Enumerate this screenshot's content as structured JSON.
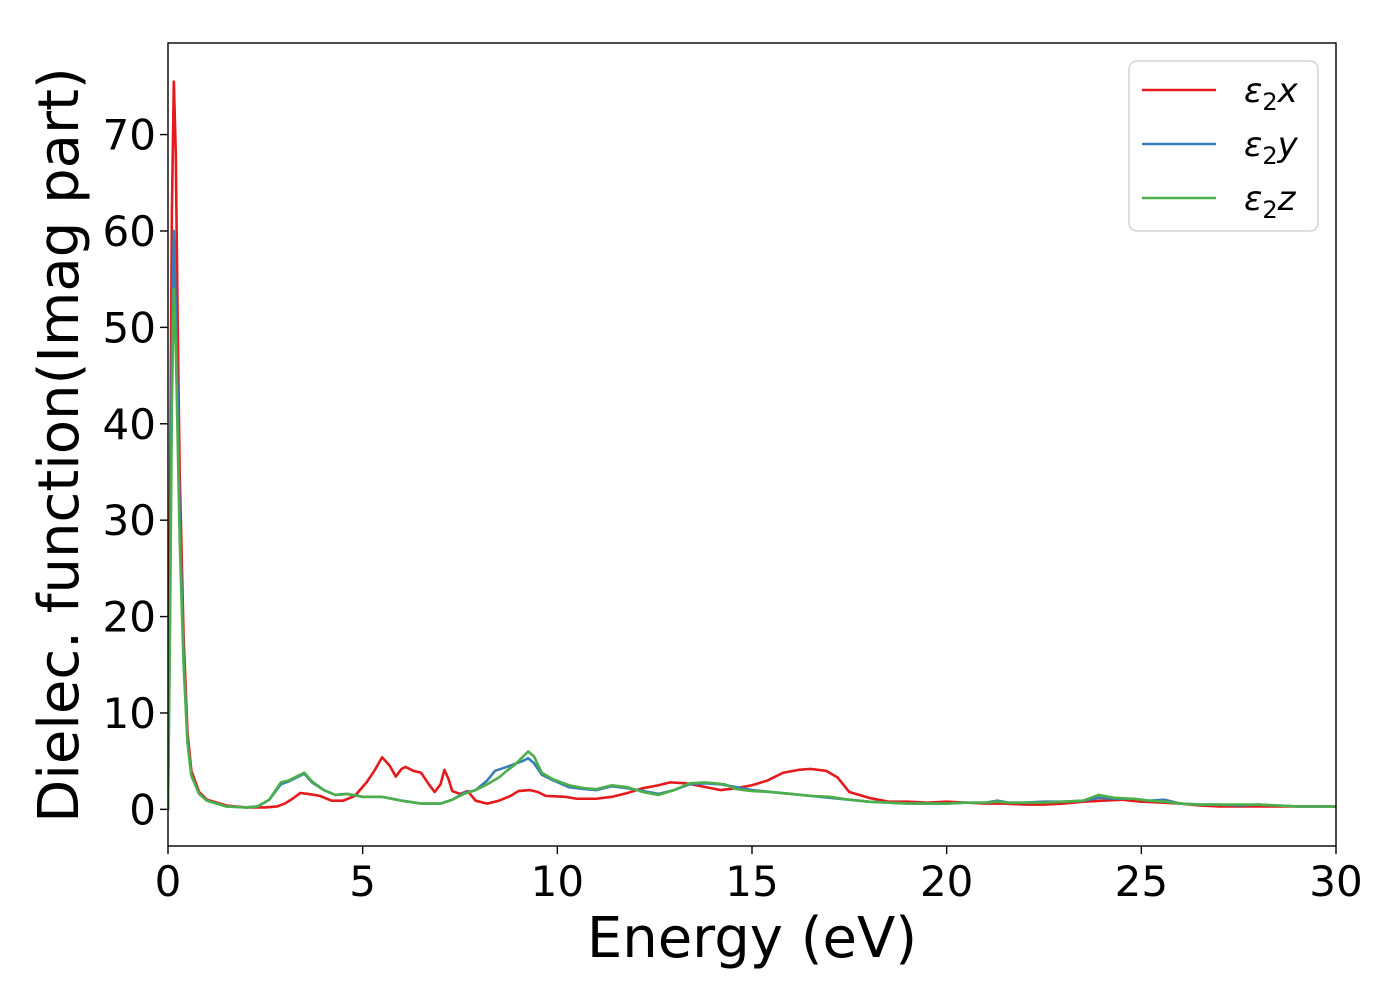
{
  "chart_data": {
    "type": "line",
    "xlabel": "Energy (eV)",
    "ylabel": "Dielec. function(Imag part)",
    "xlim": [
      0,
      30
    ],
    "ylim": [
      -3.8,
      79.5
    ],
    "xticks": [
      0,
      5,
      10,
      15,
      20,
      25,
      30
    ],
    "yticks": [
      0,
      10,
      20,
      30,
      40,
      50,
      60,
      70
    ],
    "legend_placement": "top-right",
    "grid": false,
    "series": [
      {
        "name": "ε2x",
        "symbol": "ε",
        "sub": "2",
        "suffix": "x",
        "color": "#e41a1c",
        "points": [
          [
            0,
            0
          ],
          [
            0.05,
            30
          ],
          [
            0.1,
            62
          ],
          [
            0.15,
            75.5
          ],
          [
            0.2,
            68
          ],
          [
            0.25,
            50
          ],
          [
            0.3,
            35
          ],
          [
            0.4,
            18
          ],
          [
            0.5,
            8
          ],
          [
            0.6,
            4
          ],
          [
            0.8,
            1.8
          ],
          [
            1,
            1
          ],
          [
            1.5,
            0.4
          ],
          [
            2,
            0.2
          ],
          [
            2.5,
            0.2
          ],
          [
            2.8,
            0.3
          ],
          [
            3.0,
            0.6
          ],
          [
            3.2,
            1.1
          ],
          [
            3.4,
            1.7
          ],
          [
            3.6,
            1.6
          ],
          [
            3.9,
            1.4
          ],
          [
            4.2,
            0.9
          ],
          [
            4.5,
            0.9
          ],
          [
            4.8,
            1.4
          ],
          [
            5.1,
            2.8
          ],
          [
            5.3,
            4.0
          ],
          [
            5.5,
            5.4
          ],
          [
            5.7,
            4.5
          ],
          [
            5.85,
            3.4
          ],
          [
            6.0,
            4.2
          ],
          [
            6.1,
            4.4
          ],
          [
            6.3,
            4.0
          ],
          [
            6.5,
            3.8
          ],
          [
            6.7,
            2.6
          ],
          [
            6.85,
            1.8
          ],
          [
            7.0,
            2.6
          ],
          [
            7.1,
            4.1
          ],
          [
            7.2,
            3.2
          ],
          [
            7.3,
            1.9
          ],
          [
            7.5,
            1.6
          ],
          [
            7.7,
            1.9
          ],
          [
            7.9,
            0.9
          ],
          [
            8.2,
            0.6
          ],
          [
            8.5,
            0.9
          ],
          [
            8.8,
            1.4
          ],
          [
            9.0,
            1.9
          ],
          [
            9.3,
            2.0
          ],
          [
            9.5,
            1.8
          ],
          [
            9.7,
            1.4
          ],
          [
            10.2,
            1.3
          ],
          [
            10.5,
            1.1
          ],
          [
            11.0,
            1.1
          ],
          [
            11.4,
            1.3
          ],
          [
            11.8,
            1.7
          ],
          [
            12.2,
            2.2
          ],
          [
            12.6,
            2.5
          ],
          [
            12.9,
            2.8
          ],
          [
            13.3,
            2.7
          ],
          [
            13.7,
            2.4
          ],
          [
            14.2,
            2.0
          ],
          [
            14.6,
            2.2
          ],
          [
            15.0,
            2.5
          ],
          [
            15.4,
            3.0
          ],
          [
            15.8,
            3.8
          ],
          [
            16.2,
            4.1
          ],
          [
            16.5,
            4.2
          ],
          [
            16.9,
            4.0
          ],
          [
            17.2,
            3.3
          ],
          [
            17.5,
            1.8
          ],
          [
            18.0,
            1.2
          ],
          [
            18.5,
            0.8
          ],
          [
            19.0,
            0.8
          ],
          [
            19.5,
            0.7
          ],
          [
            20.0,
            0.8
          ],
          [
            20.5,
            0.7
          ],
          [
            21.0,
            0.6
          ],
          [
            21.5,
            0.6
          ],
          [
            22.0,
            0.5
          ],
          [
            22.5,
            0.5
          ],
          [
            23.0,
            0.6
          ],
          [
            23.5,
            0.8
          ],
          [
            24.0,
            0.9
          ],
          [
            24.5,
            1.0
          ],
          [
            25.0,
            0.8
          ],
          [
            25.5,
            0.7
          ],
          [
            26.0,
            0.6
          ],
          [
            26.5,
            0.4
          ],
          [
            27.0,
            0.3
          ],
          [
            27.5,
            0.3
          ],
          [
            28.0,
            0.3
          ],
          [
            28.5,
            0.3
          ],
          [
            29.0,
            0.3
          ],
          [
            30.0,
            0.3
          ]
        ]
      },
      {
        "name": "ε2y",
        "symbol": "ε",
        "sub": "2",
        "suffix": "y",
        "color": "#377eb8",
        "points": [
          [
            0,
            0
          ],
          [
            0.05,
            20
          ],
          [
            0.1,
            48
          ],
          [
            0.15,
            60
          ],
          [
            0.2,
            52
          ],
          [
            0.25,
            42
          ],
          [
            0.3,
            30
          ],
          [
            0.4,
            16
          ],
          [
            0.5,
            7
          ],
          [
            0.6,
            3.5
          ],
          [
            0.8,
            1.6
          ],
          [
            1,
            0.9
          ],
          [
            1.5,
            0.3
          ],
          [
            2,
            0.2
          ],
          [
            2.3,
            0.3
          ],
          [
            2.6,
            1.0
          ],
          [
            2.9,
            2.6
          ],
          [
            3.1,
            2.9
          ],
          [
            3.3,
            3.3
          ],
          [
            3.5,
            3.7
          ],
          [
            3.7,
            2.8
          ],
          [
            4.0,
            2.0
          ],
          [
            4.3,
            1.5
          ],
          [
            4.6,
            1.6
          ],
          [
            5.0,
            1.3
          ],
          [
            5.5,
            1.3
          ],
          [
            6.0,
            0.9
          ],
          [
            6.5,
            0.6
          ],
          [
            7.0,
            0.6
          ],
          [
            7.3,
            1.0
          ],
          [
            7.6,
            1.7
          ],
          [
            7.9,
            2.0
          ],
          [
            8.2,
            3.0
          ],
          [
            8.4,
            4.0
          ],
          [
            8.7,
            4.4
          ],
          [
            8.9,
            4.7
          ],
          [
            9.1,
            5.0
          ],
          [
            9.25,
            5.3
          ],
          [
            9.4,
            4.8
          ],
          [
            9.6,
            3.6
          ],
          [
            9.9,
            3.0
          ],
          [
            10.3,
            2.3
          ],
          [
            10.7,
            2.1
          ],
          [
            11.0,
            2.0
          ],
          [
            11.4,
            2.4
          ],
          [
            11.8,
            2.2
          ],
          [
            12.2,
            1.9
          ],
          [
            12.6,
            1.6
          ],
          [
            13.0,
            2.0
          ],
          [
            13.4,
            2.6
          ],
          [
            13.8,
            2.7
          ],
          [
            14.2,
            2.6
          ],
          [
            14.6,
            2.3
          ],
          [
            15.0,
            2.0
          ],
          [
            15.5,
            1.8
          ],
          [
            16.0,
            1.6
          ],
          [
            16.5,
            1.4
          ],
          [
            17.0,
            1.2
          ],
          [
            17.5,
            1.0
          ],
          [
            18.0,
            0.8
          ],
          [
            18.5,
            0.7
          ],
          [
            19.0,
            0.6
          ],
          [
            19.5,
            0.6
          ],
          [
            20.0,
            0.6
          ],
          [
            20.5,
            0.7
          ],
          [
            21.0,
            0.7
          ],
          [
            21.3,
            0.9
          ],
          [
            21.6,
            0.7
          ],
          [
            22.0,
            0.7
          ],
          [
            22.5,
            0.8
          ],
          [
            23.0,
            0.8
          ],
          [
            23.5,
            0.9
          ],
          [
            23.9,
            1.2
          ],
          [
            24.3,
            1.1
          ],
          [
            24.8,
            1.1
          ],
          [
            25.2,
            0.9
          ],
          [
            25.6,
            1.0
          ],
          [
            26.0,
            0.6
          ],
          [
            26.5,
            0.5
          ],
          [
            27.0,
            0.5
          ],
          [
            27.5,
            0.4
          ],
          [
            28.0,
            0.5
          ],
          [
            28.5,
            0.4
          ],
          [
            29.0,
            0.3
          ],
          [
            30.0,
            0.3
          ]
        ]
      },
      {
        "name": "ε2z",
        "symbol": "ε",
        "sub": "2",
        "suffix": "z",
        "color": "#4daf4a",
        "points": [
          [
            0,
            0
          ],
          [
            0.05,
            18
          ],
          [
            0.1,
            42
          ],
          [
            0.15,
            54
          ],
          [
            0.2,
            48
          ],
          [
            0.25,
            38
          ],
          [
            0.3,
            28
          ],
          [
            0.4,
            15
          ],
          [
            0.5,
            7
          ],
          [
            0.6,
            3.5
          ],
          [
            0.8,
            1.6
          ],
          [
            1,
            0.9
          ],
          [
            1.5,
            0.3
          ],
          [
            2,
            0.2
          ],
          [
            2.3,
            0.3
          ],
          [
            2.6,
            1.0
          ],
          [
            2.9,
            2.8
          ],
          [
            3.1,
            3.0
          ],
          [
            3.3,
            3.4
          ],
          [
            3.5,
            3.8
          ],
          [
            3.7,
            2.9
          ],
          [
            4.0,
            2.0
          ],
          [
            4.3,
            1.5
          ],
          [
            4.6,
            1.6
          ],
          [
            5.0,
            1.3
          ],
          [
            5.5,
            1.3
          ],
          [
            6.0,
            0.9
          ],
          [
            6.5,
            0.6
          ],
          [
            7.0,
            0.6
          ],
          [
            7.3,
            1.0
          ],
          [
            7.6,
            1.6
          ],
          [
            7.9,
            2.0
          ],
          [
            8.2,
            2.6
          ],
          [
            8.5,
            3.3
          ],
          [
            8.7,
            4.0
          ],
          [
            8.9,
            4.6
          ],
          [
            9.1,
            5.4
          ],
          [
            9.25,
            6.0
          ],
          [
            9.4,
            5.5
          ],
          [
            9.6,
            3.8
          ],
          [
            9.9,
            3.1
          ],
          [
            10.3,
            2.5
          ],
          [
            10.7,
            2.2
          ],
          [
            11.0,
            2.1
          ],
          [
            11.4,
            2.5
          ],
          [
            11.8,
            2.3
          ],
          [
            12.2,
            1.8
          ],
          [
            12.6,
            1.5
          ],
          [
            13.0,
            2.0
          ],
          [
            13.4,
            2.7
          ],
          [
            13.8,
            2.8
          ],
          [
            14.3,
            2.6
          ],
          [
            14.6,
            2.1
          ],
          [
            15.0,
            1.9
          ],
          [
            15.5,
            1.8
          ],
          [
            16.0,
            1.6
          ],
          [
            16.5,
            1.4
          ],
          [
            17.0,
            1.3
          ],
          [
            17.5,
            1.0
          ],
          [
            18.0,
            0.8
          ],
          [
            18.5,
            0.7
          ],
          [
            19.0,
            0.6
          ],
          [
            19.5,
            0.6
          ],
          [
            20.0,
            0.6
          ],
          [
            20.5,
            0.7
          ],
          [
            21.0,
            0.7
          ],
          [
            21.3,
            0.8
          ],
          [
            21.6,
            0.7
          ],
          [
            22.0,
            0.7
          ],
          [
            22.5,
            0.7
          ],
          [
            23.0,
            0.8
          ],
          [
            23.5,
            0.9
          ],
          [
            23.9,
            1.5
          ],
          [
            24.3,
            1.2
          ],
          [
            24.8,
            1.1
          ],
          [
            25.2,
            0.9
          ],
          [
            25.6,
            0.8
          ],
          [
            26.0,
            0.6
          ],
          [
            26.5,
            0.5
          ],
          [
            27.0,
            0.5
          ],
          [
            27.5,
            0.5
          ],
          [
            28.0,
            0.5
          ],
          [
            28.5,
            0.4
          ],
          [
            29.0,
            0.3
          ],
          [
            30.0,
            0.3
          ]
        ]
      }
    ]
  }
}
